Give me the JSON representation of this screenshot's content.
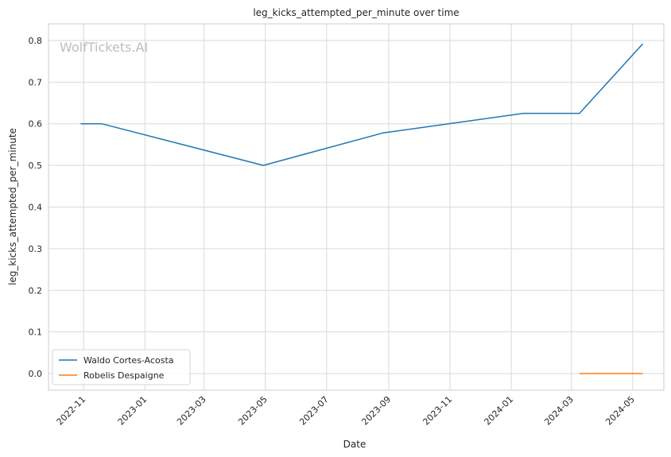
{
  "chart_data": {
    "type": "line",
    "title": "leg_kicks_attempted_per_minute over time",
    "xlabel": "Date",
    "ylabel": "leg_kicks_attempted_per_minute",
    "watermark": "WolfTickets.AI",
    "xlim": [
      "2022-09-27",
      "2024-06-01"
    ],
    "ylim": [
      -0.04,
      0.84
    ],
    "x_ticks": [
      "2022-11",
      "2023-01",
      "2023-03",
      "2023-05",
      "2023-07",
      "2023-09",
      "2023-11",
      "2024-01",
      "2024-03",
      "2024-05"
    ],
    "y_ticks": [
      "0.0",
      "0.1",
      "0.2",
      "0.3",
      "0.4",
      "0.5",
      "0.6",
      "0.7",
      "0.8"
    ],
    "grid": true,
    "legend_position": "lower-left",
    "series": [
      {
        "name": "Waldo Cortes-Acosta",
        "color": "#1f77b4",
        "x": [
          "2022-10-29",
          "2022-11-19",
          "2023-04-29",
          "2023-08-26",
          "2024-01-13",
          "2024-03-09",
          "2024-05-11"
        ],
        "y": [
          0.6,
          0.6,
          0.5,
          0.578,
          0.625,
          0.625,
          0.792
        ]
      },
      {
        "name": "Robelis Despaigne",
        "color": "#ff7f0e",
        "x": [
          "2024-03-09",
          "2024-05-11"
        ],
        "y": [
          0.0,
          0.0
        ]
      }
    ]
  }
}
